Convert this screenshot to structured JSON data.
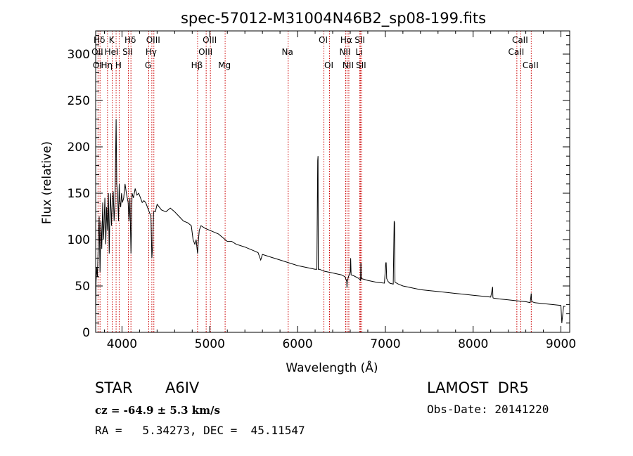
{
  "chart_data": {
    "type": "line",
    "title": "spec-57012-M31004N46B2_sp08-199.fits",
    "xlabel": "Wavelength (Å)",
    "ylabel": "Flux (relative)",
    "xlim": [
      3700,
      9100
    ],
    "ylim": [
      0,
      325
    ],
    "xticks": [
      4000,
      5000,
      6000,
      7000,
      8000,
      9000
    ],
    "yticks": [
      0,
      50,
      100,
      150,
      200,
      250,
      300
    ],
    "grid": false,
    "series": [
      {
        "x": [
          3700,
          3705,
          3712,
          3720,
          3730,
          3740,
          3750,
          3760,
          3770,
          3780,
          3790,
          3797,
          3805,
          3815,
          3825,
          3835,
          3845,
          3855,
          3862,
          3870,
          3880,
          3889,
          3900,
          3910,
          3920,
          3925,
          3933,
          3940,
          3950,
          3960,
          3968,
          3975,
          3985,
          3995,
          4005,
          4020,
          4035,
          4050,
          4060,
          4070,
          4080,
          4090,
          4102,
          4115,
          4130,
          4150,
          4170,
          4190,
          4210,
          4230,
          4250,
          4270,
          4290,
          4310,
          4330,
          4340,
          4350,
          4360,
          4380,
          4400,
          4450,
          4500,
          4550,
          4600,
          4650,
          4700,
          4750,
          4790,
          4810,
          4830,
          4845,
          4855,
          4861,
          4867,
          4880,
          4900,
          4950,
          5000,
          5050,
          5100,
          5150,
          5200,
          5250,
          5300,
          5400,
          5500,
          5550,
          5580,
          5600,
          5700,
          5800,
          5900,
          6000,
          6100,
          6200,
          6220,
          6229,
          6233,
          6236,
          6250,
          6300,
          6400,
          6500,
          6540,
          6560,
          6563,
          6567,
          6580,
          6600,
          6605,
          6610,
          6640,
          6700,
          6717,
          6721,
          6725,
          6800,
          6900,
          6990,
          7005,
          7010,
          7015,
          7030,
          7050,
          7090,
          7100,
          7105,
          7110,
          7150,
          7200,
          7300,
          7400,
          7500,
          7600,
          7700,
          7800,
          7900,
          8000,
          8100,
          8200,
          8222,
          8225,
          8228,
          8300,
          8400,
          8500,
          8600,
          8650,
          8662,
          8665,
          8670,
          8700,
          8800,
          8900,
          9000,
          9010,
          9030,
          9050
        ],
        "y": [
          20,
          55,
          70,
          60,
          95,
          125,
          65,
          120,
          90,
          140,
          100,
          120,
          145,
          95,
          135,
          110,
          150,
          85,
          130,
          150,
          115,
          140,
          152,
          120,
          140,
          175,
          230,
          160,
          150,
          120,
          160,
          142,
          135,
          150,
          140,
          145,
          160,
          150,
          145,
          140,
          120,
          145,
          85,
          150,
          145,
          155,
          148,
          150,
          145,
          140,
          142,
          140,
          135,
          130,
          125,
          80,
          95,
          130,
          130,
          138,
          132,
          130,
          134,
          130,
          125,
          120,
          118,
          115,
          100,
          95,
          100,
          90,
          85,
          95,
          110,
          115,
          112,
          110,
          108,
          106,
          102,
          98,
          98,
          95,
          92,
          88,
          86,
          78,
          84,
          81,
          78,
          75,
          72,
          70,
          68,
          68,
          185,
          190,
          68,
          68,
          66,
          64,
          62,
          60,
          55,
          48,
          55,
          60,
          65,
          80,
          62,
          61,
          58,
          56,
          75,
          58,
          56,
          54,
          53,
          75,
          75,
          58,
          55,
          53,
          52,
          120,
          118,
          54,
          52,
          50,
          48,
          46,
          45,
          44,
          43,
          42,
          41,
          40,
          39,
          38,
          49,
          38,
          37,
          36,
          35,
          34,
          33,
          32,
          42,
          35,
          33,
          32,
          31,
          30,
          29,
          10,
          28,
          28
        ]
      }
    ],
    "lines": [
      {
        "label": "Hδ",
        "x": 3750,
        "row": 0
      },
      {
        "label": "K",
        "x": 3890,
        "row": 0
      },
      {
        "label": "Hδ",
        "x": 4102,
        "row": 0
      },
      {
        "label": "OIII",
        "x": 4363,
        "row": 0
      },
      {
        "label": "OIII",
        "x": 5007,
        "row": 0
      },
      {
        "label": "OI",
        "x": 6300,
        "row": 0
      },
      {
        "label": "Hα",
        "x": 6563,
        "row": 0
      },
      {
        "label": "SII",
        "x": 6717,
        "row": 0
      },
      {
        "label": "CaII",
        "x": 8542,
        "row": 0
      },
      {
        "label": "OII",
        "x": 3727,
        "row": 1
      },
      {
        "label": "HeI",
        "x": 3889,
        "row": 1
      },
      {
        "label": "SII",
        "x": 4072,
        "row": 1
      },
      {
        "label": "Hγ",
        "x": 4340,
        "row": 1
      },
      {
        "label": "OIII",
        "x": 4959,
        "row": 1
      },
      {
        "label": "Na",
        "x": 5893,
        "row": 1
      },
      {
        "label": "NII",
        "x": 6548,
        "row": 1
      },
      {
        "label": "Li",
        "x": 6708,
        "row": 1
      },
      {
        "label": "CaII",
        "x": 8498,
        "row": 1
      },
      {
        "label": "OI",
        "x": 3727,
        "row": 2
      },
      {
        "label": "Hη",
        "x": 3835,
        "row": 2
      },
      {
        "label": "H",
        "x": 3968,
        "row": 2
      },
      {
        "label": "G",
        "x": 4305,
        "row": 2
      },
      {
        "label": "Hβ",
        "x": 4861,
        "row": 2
      },
      {
        "label": "Mg",
        "x": 5175,
        "row": 2
      },
      {
        "label": "OI",
        "x": 6364,
        "row": 2
      },
      {
        "label": "NII",
        "x": 6584,
        "row": 2
      },
      {
        "label": "SII",
        "x": 6731,
        "row": 2
      },
      {
        "label": "CaII",
        "x": 8662,
        "row": 2
      }
    ],
    "line_positions": [
      3727,
      3750,
      3835,
      3889,
      3933,
      3968,
      4072,
      4102,
      4305,
      4340,
      4363,
      4861,
      4959,
      5007,
      5175,
      5893,
      6300,
      6364,
      6548,
      6563,
      6584,
      6708,
      6717,
      6731,
      8498,
      8542,
      8662
    ]
  },
  "info": {
    "object_class": "STAR",
    "subclass": "A6IV",
    "survey": "LAMOST  DR5",
    "cz": "cz = -64.9 ± 5.3 km/s",
    "obs_date": "Obs-Date: 20141220",
    "coords": "RA =   5.34273, DEC =  45.11547"
  }
}
